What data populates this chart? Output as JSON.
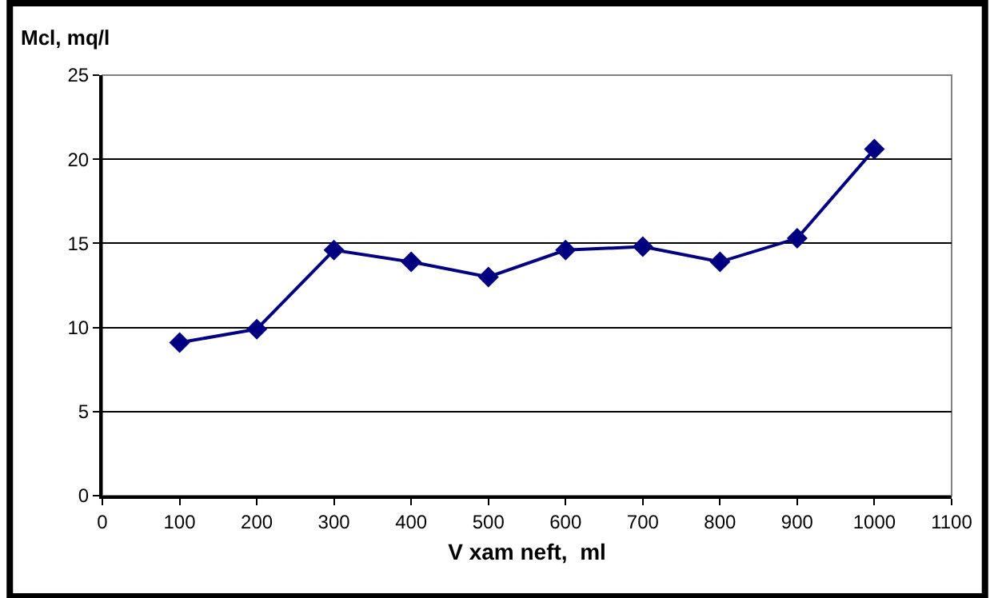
{
  "chart_data": {
    "type": "line",
    "ylabel": "Mcl, mq/l",
    "xlabel": "V xam neft,  ml",
    "x": [
      100,
      200,
      300,
      400,
      500,
      600,
      700,
      800,
      900,
      1000
    ],
    "series": [
      {
        "color": "#000080",
        "values": [
          9.1,
          9.9,
          14.6,
          13.9,
          13.0,
          14.6,
          14.8,
          13.9,
          15.3,
          20.6
        ]
      }
    ],
    "xlim": [
      0,
      1100
    ],
    "xticks": [
      0,
      100,
      200,
      300,
      400,
      500,
      600,
      700,
      800,
      900,
      1000,
      1100
    ],
    "ylim": [
      0,
      25
    ],
    "yticks": [
      0,
      5,
      10,
      15,
      20,
      25
    ],
    "grid": "y",
    "marker": "diamond",
    "line_style": "solid"
  }
}
